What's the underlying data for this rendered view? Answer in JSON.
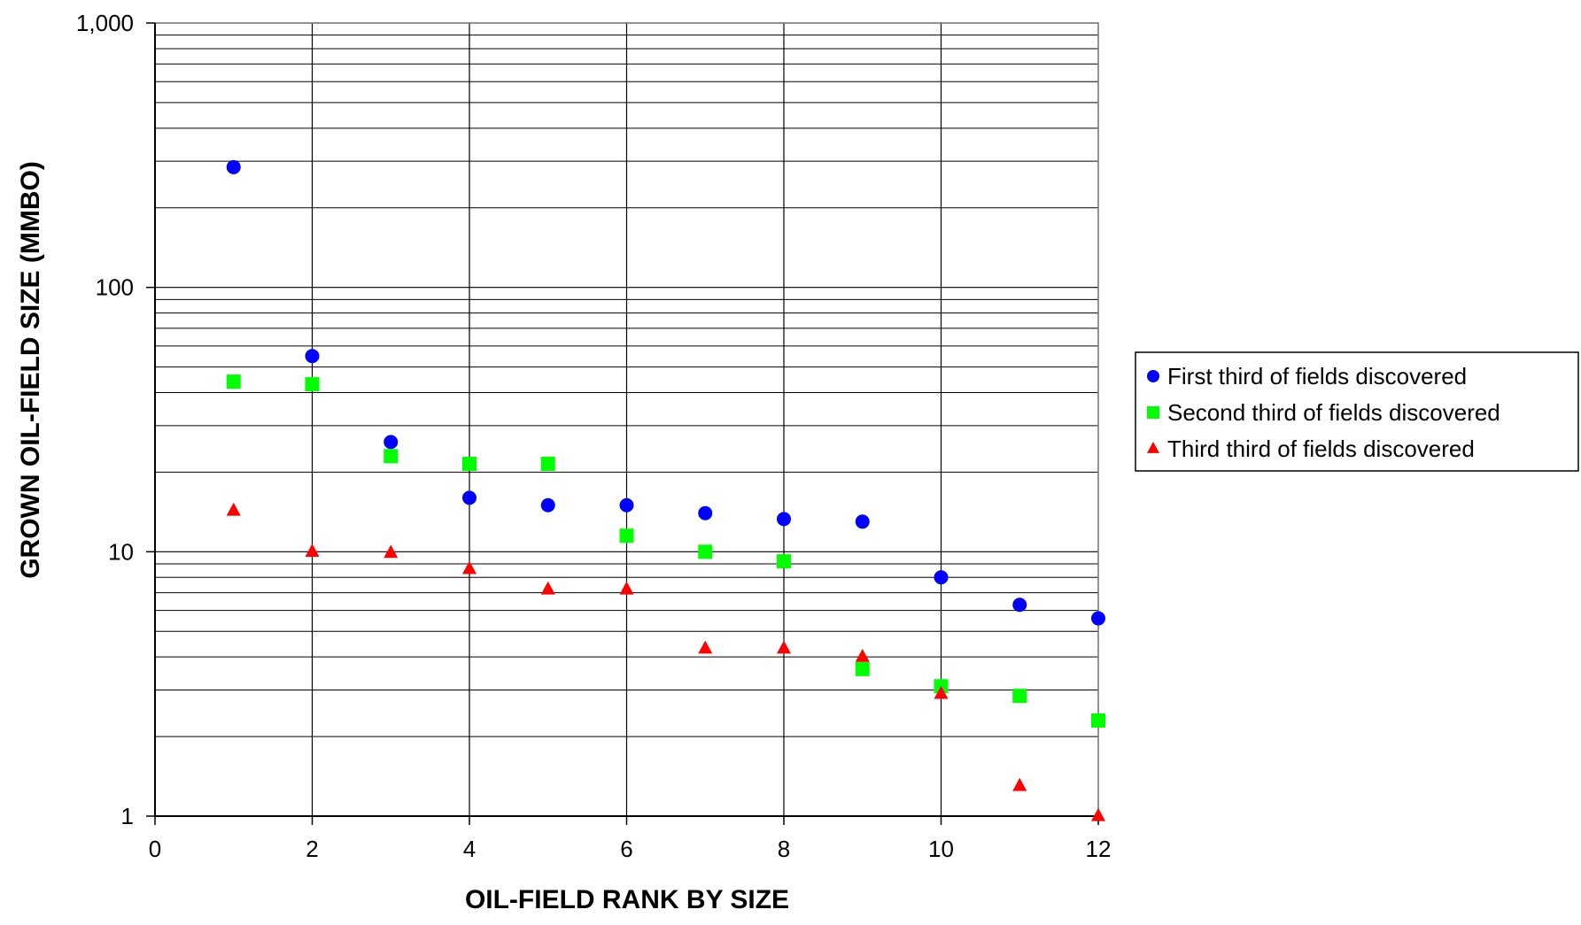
{
  "chart_data": {
    "type": "scatter",
    "title": "",
    "xlabel": "OIL-FIELD RANK BY SIZE",
    "ylabel": "GROWN OIL-FIELD SIZE (MMBO)",
    "xlim": [
      0,
      12
    ],
    "ylim": [
      1,
      1000
    ],
    "y_scale": "log",
    "grid": true,
    "legend_position": "right",
    "x_ticks": [
      {
        "value": 0,
        "label": "0"
      },
      {
        "value": 2,
        "label": "2"
      },
      {
        "value": 4,
        "label": "4"
      },
      {
        "value": 6,
        "label": "6"
      },
      {
        "value": 8,
        "label": "8"
      },
      {
        "value": 10,
        "label": "10"
      },
      {
        "value": 12,
        "label": "12"
      }
    ],
    "y_ticks": [
      {
        "value": 1,
        "label": "1"
      },
      {
        "value": 10,
        "label": "10"
      },
      {
        "value": 100,
        "label": "100"
      },
      {
        "value": 1000,
        "label": "1,000"
      }
    ],
    "series": [
      {
        "name": "First third of fields discovered",
        "marker": "circle",
        "color": "#0000FF",
        "x": [
          1,
          2,
          3,
          4,
          5,
          6,
          7,
          8,
          9,
          10,
          11,
          12
        ],
        "y": [
          285,
          55,
          26,
          16,
          15,
          15,
          14,
          13.3,
          13,
          8,
          6.3,
          5.6
        ]
      },
      {
        "name": "Second third of fields discovered",
        "marker": "square",
        "color": "#00FF00",
        "x": [
          1,
          2,
          3,
          4,
          5,
          6,
          7,
          8,
          9,
          10,
          11,
          12
        ],
        "y": [
          44,
          43,
          23,
          21.5,
          21.5,
          11.5,
          10,
          9.2,
          3.6,
          3.1,
          2.85,
          2.3
        ]
      },
      {
        "name": "Third third of fields discovered",
        "marker": "triangle",
        "color": "#FF0000",
        "x": [
          1,
          2,
          3,
          4,
          5,
          6,
          7,
          8,
          9,
          10,
          11,
          12
        ],
        "y": [
          14.3,
          10,
          9.9,
          8.6,
          7.2,
          7.2,
          4.3,
          4.3,
          4,
          2.9,
          1.3,
          1
        ]
      }
    ]
  }
}
